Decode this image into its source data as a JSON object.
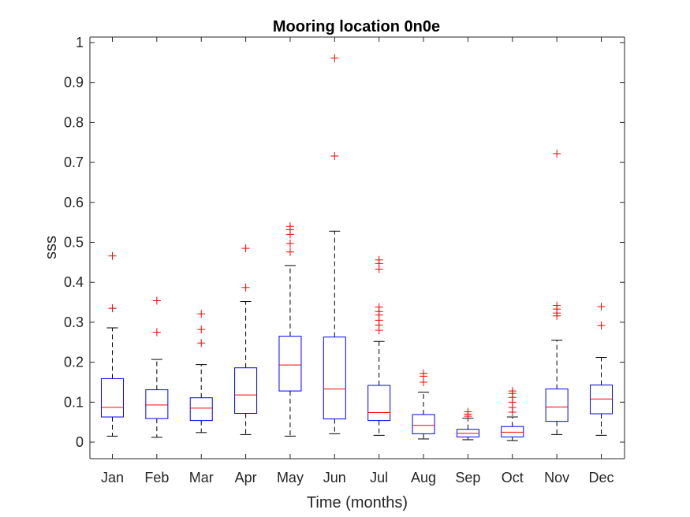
{
  "chart_data": {
    "type": "box",
    "title": "Mooring location 0n0e",
    "xlabel": "Time (months)",
    "ylabel": "sss",
    "ylim": [
      -0.04,
      1.02
    ],
    "yticks": [
      0,
      0.1,
      0.2,
      0.3,
      0.4,
      0.5,
      0.6,
      0.7,
      0.8,
      0.9,
      1
    ],
    "ytick_labels": [
      "0",
      "0.1",
      "0.2",
      "0.3",
      "0.4",
      "0.5",
      "0.6",
      "0.7",
      "0.8",
      "0.9",
      "1"
    ],
    "grid": false,
    "colors": {
      "box": "#0000ff",
      "median": "#ff0000",
      "whisker": "#000000",
      "outlier": "#ff0000",
      "axis": "#262626"
    },
    "categories": [
      "Jan",
      "Feb",
      "Mar",
      "Apr",
      "May",
      "Jun",
      "Jul",
      "Aug",
      "Sep",
      "Oct",
      "Nov",
      "Dec"
    ],
    "boxes": [
      {
        "label": "Jan",
        "whisker_low": 0.015,
        "q1": 0.063,
        "median": 0.087,
        "q3": 0.159,
        "whisker_high": 0.286,
        "outliers": [
          0.335,
          0.466
        ]
      },
      {
        "label": "Feb",
        "whisker_low": 0.012,
        "q1": 0.059,
        "median": 0.093,
        "q3": 0.131,
        "whisker_high": 0.207,
        "outliers": [
          0.275,
          0.354
        ]
      },
      {
        "label": "Mar",
        "whisker_low": 0.024,
        "q1": 0.054,
        "median": 0.085,
        "q3": 0.111,
        "whisker_high": 0.194,
        "outliers": [
          0.248,
          0.282,
          0.321
        ]
      },
      {
        "label": "Apr",
        "whisker_low": 0.019,
        "q1": 0.072,
        "median": 0.118,
        "q3": 0.186,
        "whisker_high": 0.352,
        "outliers": [
          0.387,
          0.485
        ]
      },
      {
        "label": "May",
        "whisker_low": 0.015,
        "q1": 0.128,
        "median": 0.193,
        "q3": 0.265,
        "whisker_high": 0.442,
        "outliers": [
          0.476,
          0.497,
          0.52,
          0.532,
          0.54
        ]
      },
      {
        "label": "Jun",
        "whisker_low": 0.021,
        "q1": 0.058,
        "median": 0.133,
        "q3": 0.263,
        "whisker_high": 0.528,
        "outliers": [
          0.716,
          0.961
        ]
      },
      {
        "label": "Jul",
        "whisker_low": 0.017,
        "q1": 0.054,
        "median": 0.074,
        "q3": 0.142,
        "whisker_high": 0.252,
        "outliers": [
          0.28,
          0.293,
          0.305,
          0.318,
          0.327,
          0.338,
          0.433,
          0.447,
          0.456
        ]
      },
      {
        "label": "Aug",
        "whisker_low": 0.008,
        "q1": 0.021,
        "median": 0.042,
        "q3": 0.069,
        "whisker_high": 0.125,
        "outliers": [
          0.15,
          0.165,
          0.172
        ]
      },
      {
        "label": "Sep",
        "whisker_low": 0.006,
        "q1": 0.013,
        "median": 0.022,
        "q3": 0.032,
        "whisker_high": 0.06,
        "outliers": [
          0.065,
          0.07,
          0.076
        ]
      },
      {
        "label": "Oct",
        "whisker_low": 0.004,
        "q1": 0.013,
        "median": 0.025,
        "q3": 0.039,
        "whisker_high": 0.063,
        "outliers": [
          0.075,
          0.087,
          0.1,
          0.112,
          0.122,
          0.128
        ]
      },
      {
        "label": "Nov",
        "whisker_low": 0.019,
        "q1": 0.052,
        "median": 0.088,
        "q3": 0.133,
        "whisker_high": 0.255,
        "outliers": [
          0.316,
          0.323,
          0.333,
          0.342,
          0.722
        ]
      },
      {
        "label": "Dec",
        "whisker_low": 0.017,
        "q1": 0.071,
        "median": 0.108,
        "q3": 0.143,
        "whisker_high": 0.212,
        "outliers": [
          0.292,
          0.339
        ]
      }
    ]
  }
}
